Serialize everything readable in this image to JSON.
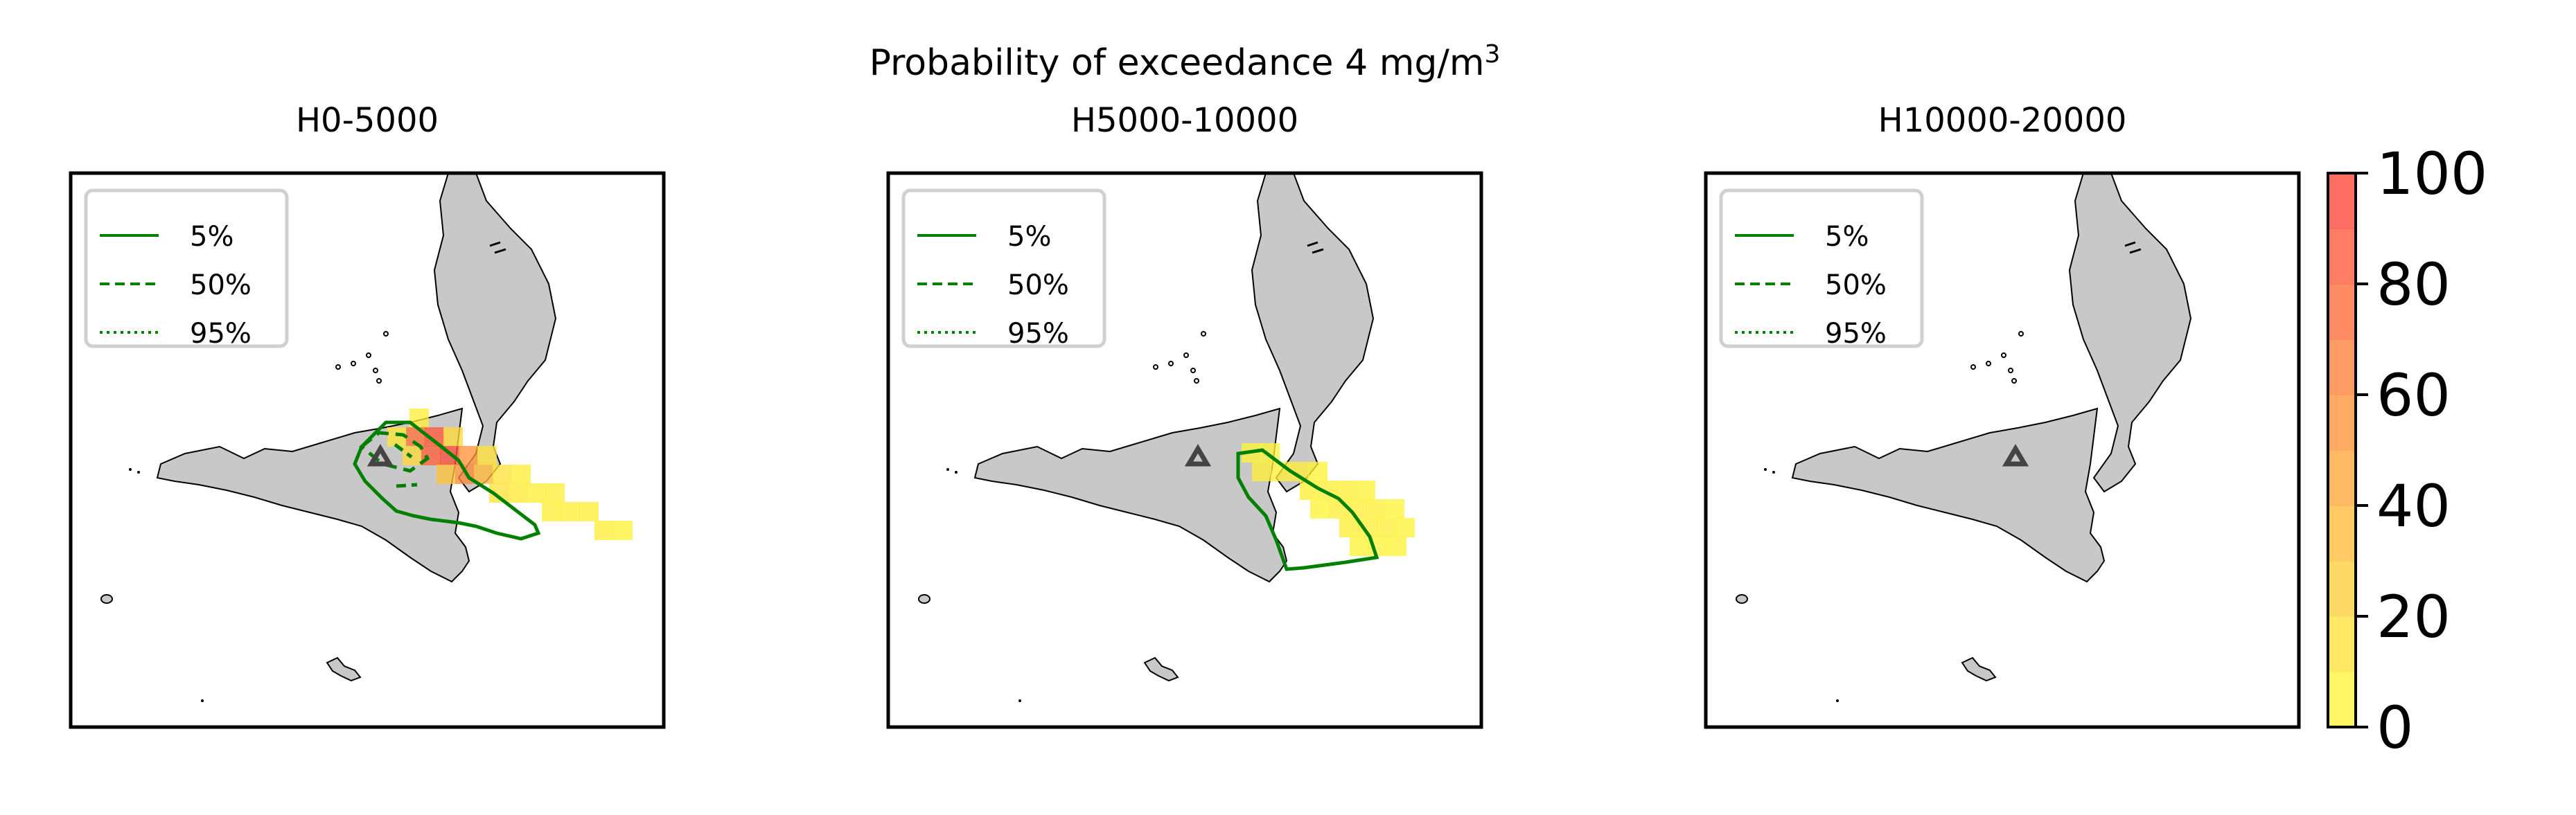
{
  "chart_data": {
    "type": "heatmap",
    "suptitle": "Probability of exceedance 4 mg/m",
    "suptitle_sup": "3",
    "panels": [
      {
        "title": "H0-5000",
        "legend": [
          "5%",
          "50%",
          "95%"
        ],
        "has_50_contour": true,
        "cells": [
          {
            "col": 2,
            "row": 0,
            "p": 8
          },
          {
            "col": 0,
            "row": 1,
            "p": 12
          },
          {
            "col": 1,
            "row": 1,
            "p": 70
          },
          {
            "col": 2,
            "row": 1,
            "p": 85
          },
          {
            "col": 3,
            "row": 1,
            "p": 20
          },
          {
            "col": 0,
            "row": 2,
            "p": 20
          },
          {
            "col": 1,
            "row": 2,
            "p": 80
          },
          {
            "col": 2,
            "row": 2,
            "p": 90
          },
          {
            "col": 3,
            "row": 2,
            "p": 55
          },
          {
            "col": 4,
            "row": 2,
            "p": 15
          },
          {
            "col": 1,
            "row": 3,
            "p": 30
          },
          {
            "col": 2,
            "row": 3,
            "p": 60
          },
          {
            "col": 3,
            "row": 3,
            "p": 35
          },
          {
            "col": 4,
            "row": 3,
            "p": 15
          },
          {
            "col": 5,
            "row": 3,
            "p": 8
          },
          {
            "col": 3,
            "row": 4,
            "p": 15
          },
          {
            "col": 4,
            "row": 4,
            "p": 10
          },
          {
            "col": 5,
            "row": 4,
            "p": 8
          },
          {
            "col": 6,
            "row": 4,
            "p": 8
          },
          {
            "col": 5,
            "row": 5,
            "p": 8
          },
          {
            "col": 6,
            "row": 5,
            "p": 8
          },
          {
            "col": 7,
            "row": 5,
            "p": 8
          },
          {
            "col": 7,
            "row": 6,
            "p": 8
          },
          {
            "col": 8,
            "row": 6,
            "p": 6
          }
        ]
      },
      {
        "title": "H5000-10000",
        "legend": [
          "5%",
          "50%",
          "95%"
        ],
        "has_50_contour": false,
        "cells": [
          {
            "col": 0,
            "row": 0,
            "p": 6
          },
          {
            "col": 1,
            "row": 0,
            "p": 6
          },
          {
            "col": 0,
            "row": 1,
            "p": 8
          },
          {
            "col": 1,
            "row": 1,
            "p": 8
          },
          {
            "col": 2,
            "row": 1,
            "p": 8
          },
          {
            "col": 3,
            "row": 1,
            "p": 6
          },
          {
            "col": 2,
            "row": 2,
            "p": 8
          },
          {
            "col": 3,
            "row": 2,
            "p": 8
          },
          {
            "col": 4,
            "row": 2,
            "p": 8
          },
          {
            "col": 5,
            "row": 2,
            "p": 6
          },
          {
            "col": 2,
            "row": 3,
            "p": 6
          },
          {
            "col": 3,
            "row": 3,
            "p": 8
          },
          {
            "col": 4,
            "row": 3,
            "p": 8
          },
          {
            "col": 5,
            "row": 3,
            "p": 8
          },
          {
            "col": 6,
            "row": 3,
            "p": 6
          },
          {
            "col": 3,
            "row": 4,
            "p": 8
          },
          {
            "col": 4,
            "row": 4,
            "p": 8
          },
          {
            "col": 5,
            "row": 4,
            "p": 8
          },
          {
            "col": 6,
            "row": 4,
            "p": 6
          },
          {
            "col": 3,
            "row": 5,
            "p": 6
          },
          {
            "col": 4,
            "row": 5,
            "p": 6
          },
          {
            "col": 5,
            "row": 5,
            "p": 6
          }
        ]
      },
      {
        "title": "H10000-20000",
        "legend": [
          "5%",
          "50%",
          "95%"
        ],
        "has_50_contour": false,
        "cells": []
      }
    ],
    "colorbar": {
      "vmin": 0,
      "vmax": 100,
      "levels": 10,
      "ticks": [
        "0",
        "20",
        "40",
        "60",
        "80",
        "100"
      ],
      "cmap": [
        "#ffff3a",
        "#ff3a3a"
      ]
    },
    "colors": {
      "land": "#c8c8c8",
      "contour": "#008000",
      "vent": "#444444"
    }
  }
}
